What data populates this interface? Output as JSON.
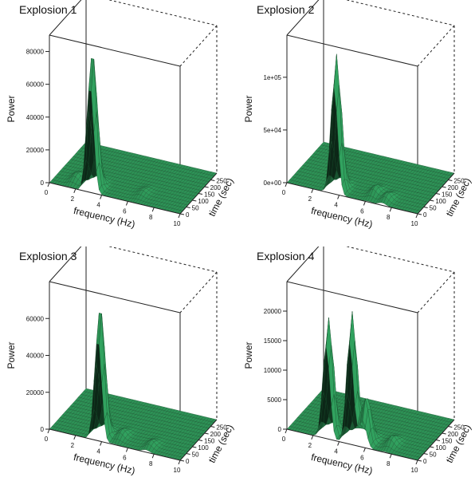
{
  "chart_data": [
    {
      "type": "surface",
      "title": "Explosion 1",
      "xlabel": "frequency (Hz)",
      "ylabel": "time (sec)",
      "zlabel": "Power",
      "x_ticks": [
        "0",
        "2",
        "4",
        "6",
        "8",
        "10"
      ],
      "y_ticks": [
        "0",
        "50",
        "100",
        "150",
        "200",
        "250"
      ],
      "z_ticks": [
        "0",
        "20000",
        "40000",
        "60000",
        "80000"
      ],
      "xlim": [
        0,
        10
      ],
      "ylim": [
        0,
        300
      ],
      "zlim": [
        0,
        90000
      ],
      "peaks": [
        {
          "frequency": 3.1,
          "time": 20,
          "power": 85000
        },
        {
          "frequency": 1.5,
          "time": 60,
          "power": 4000
        },
        {
          "frequency": 6.5,
          "time": 70,
          "power": 2500
        }
      ],
      "color": "#2f9a5a"
    },
    {
      "type": "surface",
      "title": "Explosion 2",
      "xlabel": "frequency (Hz)",
      "ylabel": "time (sec)",
      "zlabel": "Power",
      "x_ticks": [
        "0",
        "2",
        "4",
        "6",
        "8",
        "10"
      ],
      "y_ticks": [
        "0",
        "50",
        "100",
        "150",
        "200",
        "250"
      ],
      "z_ticks": [
        "0e+00",
        "5e+04",
        "1e+05"
      ],
      "xlim": [
        0,
        10
      ],
      "ylim": [
        0,
        300
      ],
      "zlim": [
        0,
        140000
      ],
      "peaks": [
        {
          "frequency": 3.6,
          "time": 20,
          "power": 130000
        },
        {
          "frequency": 6.2,
          "time": 60,
          "power": 8000
        },
        {
          "frequency": 7.3,
          "time": 40,
          "power": 7000
        }
      ],
      "color": "#2f9a5a"
    },
    {
      "type": "surface",
      "title": "Explosion 3",
      "xlabel": "frequency (Hz)",
      "ylabel": "time (sec)",
      "zlabel": "Power",
      "x_ticks": [
        "0",
        "2",
        "4",
        "6",
        "8",
        "10"
      ],
      "y_ticks": [
        "0",
        "50",
        "100",
        "150",
        "200",
        "250"
      ],
      "z_ticks": [
        "0",
        "20000",
        "40000",
        "60000"
      ],
      "xlim": [
        0,
        10
      ],
      "ylim": [
        0,
        300
      ],
      "zlim": [
        0,
        80000
      ],
      "peaks": [
        {
          "frequency": 3.7,
          "time": 20,
          "power": 72000
        },
        {
          "frequency": 5.0,
          "time": 60,
          "power": 4000
        },
        {
          "frequency": 7.4,
          "time": 40,
          "power": 3500
        }
      ],
      "color": "#2f9a5a"
    },
    {
      "type": "surface",
      "title": "Explosion 4",
      "xlabel": "frequency (Hz)",
      "ylabel": "time (sec)",
      "zlabel": "Power",
      "x_ticks": [
        "0",
        "2",
        "4",
        "6",
        "8",
        "10"
      ],
      "y_ticks": [
        "0",
        "50",
        "100",
        "150",
        "200",
        "250"
      ],
      "z_ticks": [
        "0",
        "5000",
        "10000",
        "15000",
        "20000"
      ],
      "xlim": [
        0,
        10
      ],
      "ylim": [
        0,
        300
      ],
      "zlim": [
        0,
        25000
      ],
      "peaks": [
        {
          "frequency": 3.0,
          "time": 20,
          "power": 20000
        },
        {
          "frequency": 4.8,
          "time": 20,
          "power": 22000
        },
        {
          "frequency": 5.8,
          "time": 30,
          "power": 8000
        },
        {
          "frequency": 7.5,
          "time": 60,
          "power": 1500
        }
      ],
      "color": "#2f9a5a"
    }
  ]
}
